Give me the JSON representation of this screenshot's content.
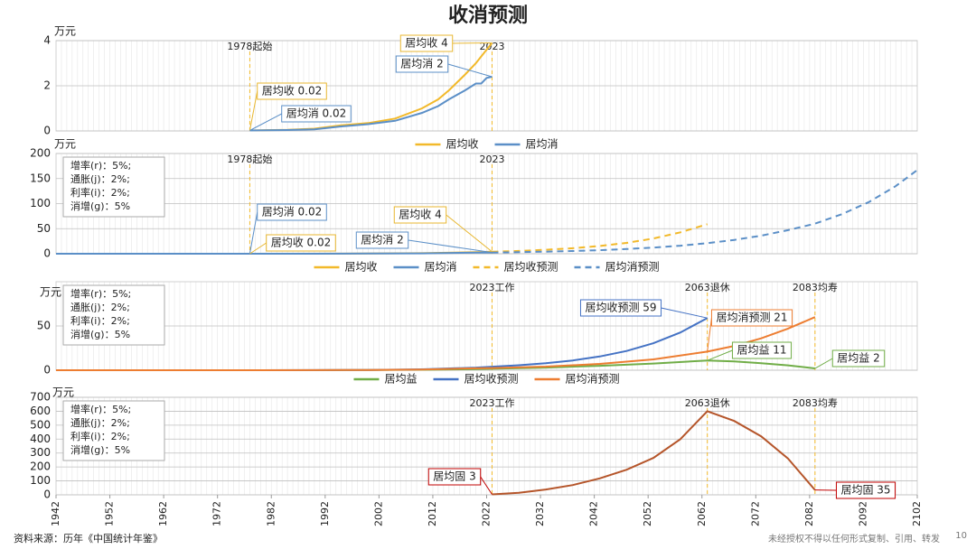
{
  "title": "收消预测",
  "chart_data": [
    {
      "type": "line",
      "ylabel": "万元",
      "xlim": [
        1942,
        2102
      ],
      "ylim": [
        0,
        4
      ],
      "yticks": [
        0,
        2,
        4
      ],
      "grid": true,
      "markers": [
        {
          "x": 1978,
          "label": "1978起始"
        },
        {
          "x": 2023,
          "label": "2023"
        }
      ],
      "series": [
        {
          "name": "居均收",
          "color": "#f2b92a",
          "dash": false,
          "x": [
            1978,
            1985,
            1990,
            1995,
            2000,
            2005,
            2010,
            2013,
            2015,
            2018,
            2020,
            2021,
            2022,
            2023
          ],
          "values": [
            0.02,
            0.05,
            0.1,
            0.25,
            0.35,
            0.55,
            1.0,
            1.4,
            1.8,
            2.5,
            3.0,
            3.3,
            3.6,
            3.9
          ]
        },
        {
          "name": "居均消",
          "color": "#5b8fc7",
          "dash": false,
          "x": [
            1978,
            1985,
            1990,
            1995,
            2000,
            2005,
            2010,
            2013,
            2015,
            2018,
            2020,
            2021,
            2022,
            2023
          ],
          "values": [
            0.02,
            0.04,
            0.07,
            0.2,
            0.3,
            0.45,
            0.8,
            1.1,
            1.4,
            1.8,
            2.1,
            2.1,
            2.35,
            2.4
          ]
        }
      ],
      "annotations": [
        {
          "text": "居均收 4",
          "x": 2023,
          "y": 3.9
        },
        {
          "text": "居均消 2",
          "x": 2023,
          "y": 2.4
        },
        {
          "text": "居均收 0.02",
          "x": 1978,
          "y": 0.02
        },
        {
          "text": "居均消 0.02",
          "x": 1978,
          "y": 0.02
        }
      ]
    },
    {
      "type": "line",
      "ylabel": "万元",
      "xlim": [
        1942,
        2102
      ],
      "ylim": [
        0,
        200
      ],
      "yticks": [
        0,
        50,
        100,
        150,
        200
      ],
      "grid": true,
      "params": [
        "增率(r)：5%;",
        "通胀(j)：2%;",
        "利率(i)：2%;",
        "消增(g)：5%"
      ],
      "markers": [
        {
          "x": 1978,
          "label": "1978起始"
        },
        {
          "x": 2023,
          "label": "2023"
        }
      ],
      "series": [
        {
          "name": "居均收",
          "color": "#f2b92a",
          "dash": false,
          "x": [
            1978,
            1990,
            2000,
            2010,
            2020,
            2023
          ],
          "values": [
            0.02,
            0.1,
            0.35,
            1.0,
            3.0,
            3.9
          ]
        },
        {
          "name": "居均消",
          "color": "#5b8fc7",
          "dash": false,
          "x": [
            1942,
            1978,
            1990,
            2000,
            2010,
            2020,
            2023
          ],
          "values": [
            0,
            0.02,
            0.07,
            0.3,
            0.8,
            2.1,
            2.4
          ]
        },
        {
          "name": "居均收预测",
          "color": "#f2b92a",
          "dash": true,
          "x": [
            2023,
            2028,
            2033,
            2038,
            2043,
            2048,
            2053,
            2058,
            2063
          ],
          "values": [
            4,
            5.6,
            7.9,
            11,
            15.5,
            21.7,
            30.5,
            42.7,
            59
          ]
        },
        {
          "name": "居均消预测",
          "color": "#5b8fc7",
          "dash": true,
          "x": [
            2023,
            2028,
            2033,
            2038,
            2043,
            2048,
            2053,
            2058,
            2063,
            2068,
            2073,
            2078,
            2083,
            2088,
            2093,
            2098,
            2102
          ],
          "values": [
            2.4,
            3.1,
            4.1,
            5.4,
            7.1,
            9.3,
            12.2,
            16,
            21,
            27.5,
            36,
            47,
            60,
            79,
            103,
            135,
            167
          ]
        }
      ],
      "annotations": [
        {
          "text": "居均消 0.02",
          "x": 1978,
          "y": 0.02
        },
        {
          "text": "居均收 0.02",
          "x": 1978,
          "y": 0.02
        },
        {
          "text": "居均收 4",
          "x": 2023,
          "y": 4
        },
        {
          "text": "居均消 2",
          "x": 2023,
          "y": 2.4
        }
      ]
    },
    {
      "type": "line",
      "ylabel": "万元",
      "xlim": [
        1942,
        2102
      ],
      "ylim": [
        0,
        100
      ],
      "yticks": [
        0,
        50
      ],
      "grid": true,
      "params": [
        "增率(r)：5%;",
        "通胀(j)：2%;",
        "利率(i)：2%;",
        "消增(g)：5%"
      ],
      "markers": [
        {
          "x": 2023,
          "label": "2023工作"
        },
        {
          "x": 2063,
          "label": "2063退休"
        },
        {
          "x": 2083,
          "label": "2083均寿"
        }
      ],
      "series": [
        {
          "name": "居均益",
          "color": "#70ad47",
          "dash": false,
          "x": [
            1942,
            1980,
            1990,
            2000,
            2010,
            2020,
            2023,
            2033,
            2043,
            2053,
            2063,
            2068,
            2073,
            2078,
            2083
          ],
          "values": [
            0,
            0,
            0.05,
            0.2,
            0.5,
            1.2,
            1.6,
            3,
            5,
            7.5,
            11,
            10,
            8,
            5.5,
            2
          ]
        },
        {
          "name": "居均收预测",
          "color": "#4472c4",
          "dash": false,
          "x": [
            1942,
            1980,
            1990,
            2000,
            2010,
            2020,
            2023,
            2028,
            2033,
            2038,
            2043,
            2048,
            2053,
            2058,
            2063
          ],
          "values": [
            0,
            0.02,
            0.1,
            0.35,
            1.0,
            3.0,
            4,
            5.6,
            7.9,
            11,
            15.5,
            21.7,
            30.5,
            42.7,
            59
          ]
        },
        {
          "name": "居均消预测",
          "color": "#ed7d31",
          "dash": false,
          "x": [
            1942,
            1980,
            1990,
            2000,
            2010,
            2020,
            2023,
            2033,
            2043,
            2053,
            2063,
            2068,
            2073,
            2078,
            2083
          ],
          "values": [
            0,
            0.02,
            0.07,
            0.3,
            0.8,
            2.1,
            2.4,
            4.1,
            7.1,
            12.2,
            21,
            27.5,
            36,
            47,
            60
          ]
        }
      ],
      "annotations": [
        {
          "text": "居均收预测 59",
          "x": 2063,
          "y": 59
        },
        {
          "text": "居均消预测 21",
          "x": 2063,
          "y": 21
        },
        {
          "text": "居均益 11",
          "x": 2063,
          "y": 11
        },
        {
          "text": "居均益 2",
          "x": 2083,
          "y": 2
        }
      ]
    },
    {
      "type": "line",
      "ylabel": "万元",
      "xlim": [
        1942,
        2102
      ],
      "ylim": [
        0,
        700
      ],
      "yticks": [
        0,
        100,
        200,
        300,
        400,
        500,
        600,
        700
      ],
      "grid": true,
      "xticks": [
        1942,
        1952,
        1962,
        1972,
        1982,
        1992,
        2002,
        2012,
        2022,
        2032,
        2042,
        2052,
        2062,
        2072,
        2082,
        2092,
        2102
      ],
      "params": [
        "增率(r)：5%;",
        "通胀(j)：2%;",
        "利率(i)：2%;",
        "消增(g)：5%"
      ],
      "markers": [
        {
          "x": 2023,
          "label": "2023工作"
        },
        {
          "x": 2063,
          "label": "2063退休"
        },
        {
          "x": 2083,
          "label": "2083均寿"
        }
      ],
      "series": [
        {
          "name": "居均固",
          "color": "#b5552a",
          "dash": false,
          "x": [
            2023,
            2028,
            2033,
            2038,
            2043,
            2048,
            2053,
            2058,
            2063,
            2068,
            2073,
            2078,
            2083
          ],
          "values": [
            3,
            15,
            38,
            70,
            118,
            180,
            265,
            400,
            600,
            530,
            420,
            260,
            35
          ]
        }
      ],
      "legend": false,
      "annotations": [
        {
          "text": "居均固 3",
          "x": 2023,
          "y": 3
        },
        {
          "text": "居均固 35",
          "x": 2083,
          "y": 35
        }
      ]
    }
  ],
  "footer": {
    "source": "资料来源：历年《中国统计年鉴》",
    "notice": "未经授权不得以任何形式复制、引用、转发",
    "page_number": 10
  }
}
